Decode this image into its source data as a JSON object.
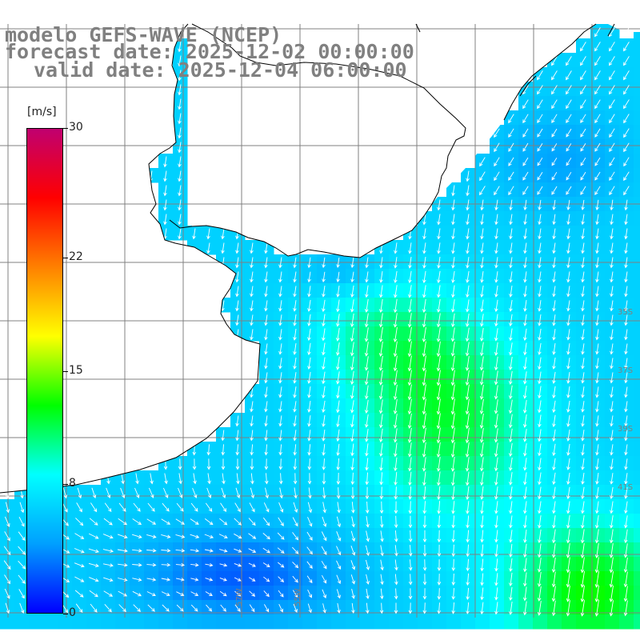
{
  "title": {
    "line1": "modelo GEFS-WAVE (NCEP)",
    "line2": "forecast date: 2025-12-02 00:00:00",
    "line3": "valid date: 2025-12-04 06:00:00"
  },
  "colorbar": {
    "unit": "[m/s]",
    "min": 0,
    "max": 30,
    "ticks": [
      {
        "label": "30",
        "value": 30
      },
      {
        "label": "22",
        "value": 22
      },
      {
        "label": "15",
        "value": 15
      },
      {
        "label": "8",
        "value": 8
      },
      {
        "label": "0",
        "value": 0
      }
    ]
  },
  "map": {
    "land_color": "#ffffff",
    "coast_color": "#000000",
    "grid_color": "#808080",
    "arrow_color": "#ffffff",
    "lat_labels": [
      "35S",
      "37S",
      "39S",
      "41S"
    ],
    "lon_labels": [
      "57W",
      "55W"
    ],
    "wind_direction": "predominantly southward (from the north), turning eastward in the south-west",
    "speed_range_m_s": [
      4,
      14
    ]
  },
  "colors": {
    "scale": [
      "#0000ff",
      "#00a0ff",
      "#00ffff",
      "#00ff00",
      "#ffff00",
      "#ff8000",
      "#ff0000",
      "#c00070"
    ]
  }
}
